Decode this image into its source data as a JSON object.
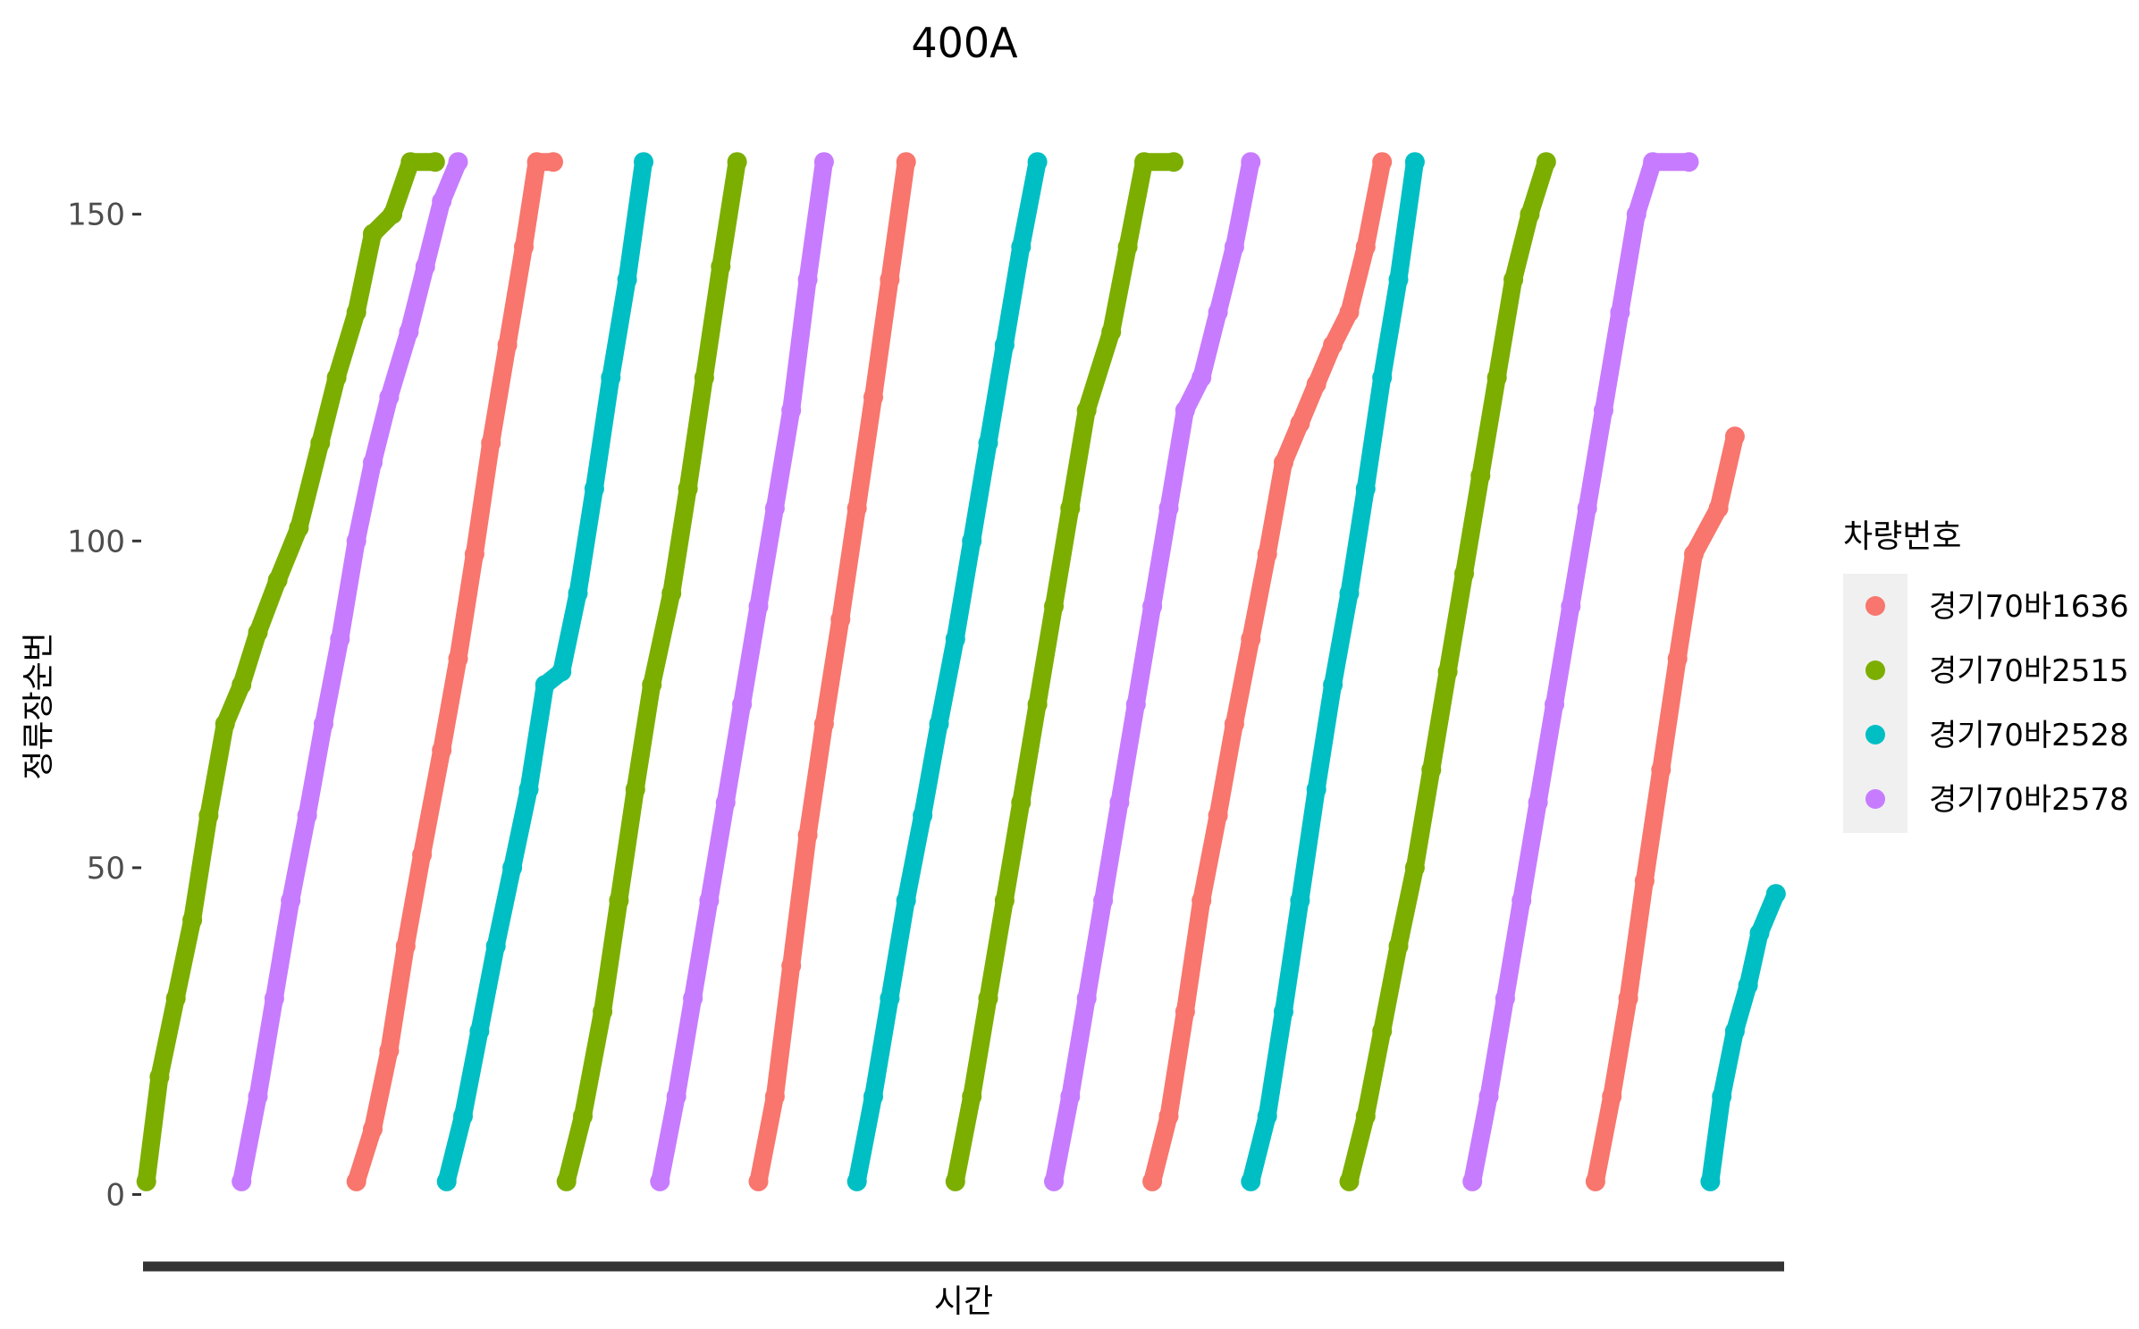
{
  "chart_data": {
    "type": "scatter",
    "title": "400A",
    "xlabel": "시간",
    "ylabel": "정류장순번",
    "xlim": [
      0,
      1000
    ],
    "ylim": [
      -8,
      165
    ],
    "yticks": [
      0,
      50,
      100,
      150
    ],
    "grid": false,
    "legend": {
      "title": "차량번호",
      "placement": "right",
      "entries": [
        "경기70바1636",
        "경기70바2515",
        "경기70바2528",
        "경기70바2578"
      ]
    },
    "colors": {
      "경기70바1636": "#F8766D",
      "경기70바2515": "#7CAE00",
      "경기70바2528": "#00BFC4",
      "경기70바2578": "#C77CFF"
    },
    "series": [
      {
        "name": "경기70바1636",
        "trips": [
          [
            [
              130,
              2
            ],
            [
              140,
              10
            ],
            [
              150,
              22
            ],
            [
              160,
              38
            ],
            [
              170,
              52
            ],
            [
              182,
              68
            ],
            [
              192,
              82
            ],
            [
              202,
              98
            ],
            [
              212,
              115
            ],
            [
              222,
              130
            ],
            [
              232,
              145
            ],
            [
              240,
              158
            ],
            [
              250,
              158
            ]
          ],
          [
            [
              375,
              2
            ],
            [
              385,
              15
            ],
            [
              395,
              35
            ],
            [
              405,
              55
            ],
            [
              415,
              72
            ],
            [
              425,
              88
            ],
            [
              435,
              105
            ],
            [
              445,
              122
            ],
            [
              455,
              140
            ],
            [
              465,
              158
            ]
          ],
          [
            [
              615,
              2
            ],
            [
              625,
              12
            ],
            [
              635,
              28
            ],
            [
              645,
              45
            ],
            [
              655,
              58
            ],
            [
              665,
              72
            ],
            [
              675,
              85
            ],
            [
              685,
              98
            ],
            [
              695,
              112
            ],
            [
              705,
              118
            ],
            [
              715,
              124
            ],
            [
              725,
              130
            ],
            [
              735,
              135
            ],
            [
              745,
              145
            ],
            [
              755,
              158
            ]
          ],
          [
            [
              885,
              2
            ],
            [
              895,
              15
            ],
            [
              905,
              30
            ],
            [
              915,
              48
            ],
            [
              925,
              65
            ],
            [
              935,
              82
            ],
            [
              945,
              98
            ],
            [
              960,
              105
            ],
            [
              970,
              116
            ]
          ]
        ]
      },
      {
        "name": "경기70바2515",
        "trips": [
          [
            [
              2,
              2
            ],
            [
              10,
              18
            ],
            [
              20,
              30
            ],
            [
              30,
              42
            ],
            [
              40,
              58
            ],
            [
              50,
              72
            ],
            [
              60,
              78
            ],
            [
              70,
              86
            ],
            [
              82,
              94
            ],
            [
              95,
              102
            ],
            [
              108,
              115
            ],
            [
              118,
              125
            ],
            [
              130,
              135
            ],
            [
              140,
              147
            ],
            [
              152,
              150
            ],
            [
              163,
              158
            ],
            [
              178,
              158
            ]
          ],
          [
            [
              258,
              2
            ],
            [
              268,
              12
            ],
            [
              280,
              28
            ],
            [
              290,
              45
            ],
            [
              300,
              62
            ],
            [
              310,
              78
            ],
            [
              322,
              92
            ],
            [
              332,
              108
            ],
            [
              342,
              125
            ],
            [
              352,
              142
            ],
            [
              362,
              158
            ]
          ],
          [
            [
              495,
              2
            ],
            [
              505,
              15
            ],
            [
              515,
              30
            ],
            [
              525,
              45
            ],
            [
              535,
              60
            ],
            [
              545,
              75
            ],
            [
              555,
              90
            ],
            [
              565,
              105
            ],
            [
              575,
              120
            ],
            [
              590,
              132
            ],
            [
              600,
              145
            ],
            [
              610,
              158
            ],
            [
              628,
              158
            ]
          ],
          [
            [
              735,
              2
            ],
            [
              745,
              12
            ],
            [
              755,
              25
            ],
            [
              765,
              38
            ],
            [
              775,
              50
            ],
            [
              785,
              65
            ],
            [
              795,
              80
            ],
            [
              805,
              95
            ],
            [
              815,
              110
            ],
            [
              825,
              125
            ],
            [
              835,
              140
            ],
            [
              845,
              150
            ],
            [
              855,
              158
            ]
          ]
        ]
      },
      {
        "name": "경기70바2528",
        "trips": [
          [
            [
              185,
              2
            ],
            [
              195,
              12
            ],
            [
              205,
              25
            ],
            [
              215,
              38
            ],
            [
              225,
              50
            ],
            [
              235,
              62
            ],
            [
              245,
              78
            ],
            [
              255,
              80
            ],
            [
              265,
              92
            ],
            [
              275,
              108
            ],
            [
              285,
              125
            ],
            [
              295,
              140
            ],
            [
              305,
              158
            ]
          ],
          [
            [
              435,
              2
            ],
            [
              445,
              15
            ],
            [
              455,
              30
            ],
            [
              465,
              45
            ],
            [
              475,
              58
            ],
            [
              485,
              72
            ],
            [
              495,
              85
            ],
            [
              505,
              100
            ],
            [
              515,
              115
            ],
            [
              525,
              130
            ],
            [
              535,
              145
            ],
            [
              545,
              158
            ]
          ],
          [
            [
              675,
              2
            ],
            [
              685,
              12
            ],
            [
              695,
              28
            ],
            [
              705,
              45
            ],
            [
              715,
              62
            ],
            [
              725,
              78
            ],
            [
              735,
              92
            ],
            [
              745,
              108
            ],
            [
              755,
              125
            ],
            [
              765,
              140
            ],
            [
              775,
              158
            ]
          ],
          [
            [
              955,
              2
            ],
            [
              962,
              15
            ],
            [
              970,
              25
            ],
            [
              978,
              32
            ],
            [
              985,
              40
            ],
            [
              995,
              46
            ]
          ]
        ]
      },
      {
        "name": "경기70바2578",
        "trips": [
          [
            [
              60,
              2
            ],
            [
              70,
              15
            ],
            [
              80,
              30
            ],
            [
              90,
              45
            ],
            [
              100,
              58
            ],
            [
              110,
              72
            ],
            [
              120,
              85
            ],
            [
              130,
              100
            ],
            [
              140,
              112
            ],
            [
              150,
              122
            ],
            [
              162,
              132
            ],
            [
              172,
              142
            ],
            [
              182,
              152
            ],
            [
              192,
              158
            ]
          ],
          [
            [
              315,
              2
            ],
            [
              325,
              15
            ],
            [
              335,
              30
            ],
            [
              345,
              45
            ],
            [
              355,
              60
            ],
            [
              365,
              75
            ],
            [
              375,
              90
            ],
            [
              385,
              105
            ],
            [
              395,
              120
            ],
            [
              405,
              140
            ],
            [
              415,
              158
            ]
          ],
          [
            [
              555,
              2
            ],
            [
              565,
              15
            ],
            [
              575,
              30
            ],
            [
              585,
              45
            ],
            [
              595,
              60
            ],
            [
              605,
              75
            ],
            [
              615,
              90
            ],
            [
              625,
              105
            ],
            [
              635,
              120
            ],
            [
              645,
              125
            ],
            [
              655,
              135
            ],
            [
              665,
              145
            ],
            [
              675,
              158
            ]
          ],
          [
            [
              810,
              2
            ],
            [
              820,
              15
            ],
            [
              830,
              30
            ],
            [
              840,
              45
            ],
            [
              850,
              60
            ],
            [
              860,
              75
            ],
            [
              870,
              90
            ],
            [
              880,
              105
            ],
            [
              890,
              120
            ],
            [
              900,
              135
            ],
            [
              910,
              150
            ],
            [
              920,
              158
            ],
            [
              942,
              158
            ]
          ]
        ]
      }
    ]
  }
}
